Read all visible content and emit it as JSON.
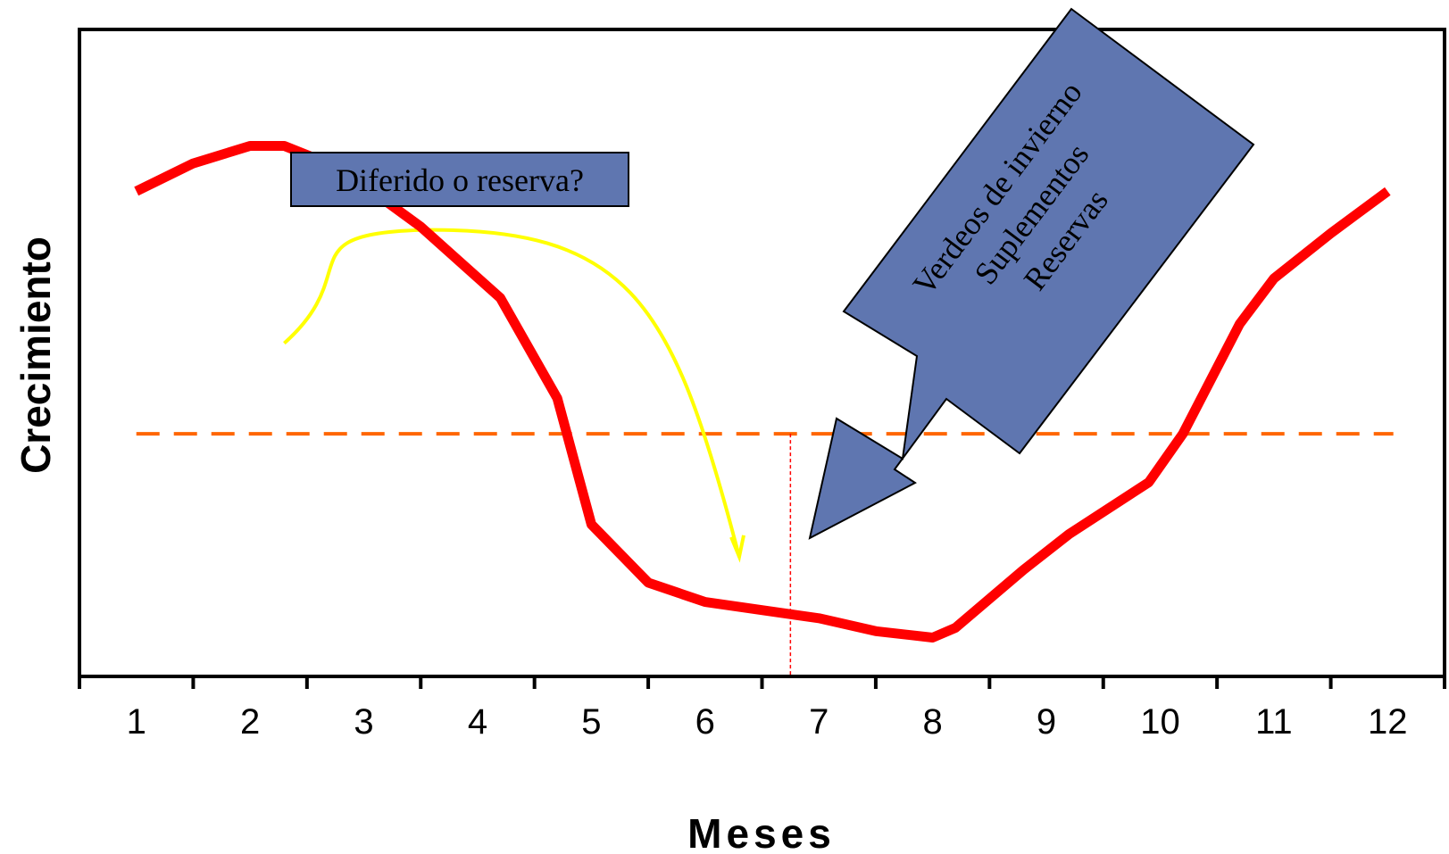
{
  "chart_data": {
    "type": "line",
    "xlabel": "Meses",
    "ylabel": "Crecimiento",
    "categories": [
      "1",
      "2",
      "3",
      "4",
      "5",
      "6",
      "7",
      "8",
      "9",
      "10",
      "11",
      "12"
    ],
    "xlim": [
      0.5,
      12.5
    ],
    "ylim": [
      0,
      100
    ],
    "grid": false,
    "legend": "none",
    "series": [
      {
        "color": "#ff0000",
        "points": [
          [
            1.0,
            75.0
          ],
          [
            1.5,
            79.3
          ],
          [
            2.0,
            82.0
          ],
          [
            2.3,
            82.0
          ],
          [
            2.8,
            78.5
          ],
          [
            3.5,
            69.5
          ],
          [
            4.2,
            58.5
          ],
          [
            4.7,
            43.0
          ],
          [
            5.0,
            23.5
          ],
          [
            5.5,
            14.5
          ],
          [
            6.0,
            11.5
          ],
          [
            7.0,
            9.0
          ],
          [
            7.5,
            7.0
          ],
          [
            8.0,
            6.0
          ],
          [
            8.2,
            7.5
          ],
          [
            8.8,
            16.5
          ],
          [
            9.2,
            22.0
          ],
          [
            9.9,
            30.0
          ],
          [
            10.2,
            37.5
          ],
          [
            10.7,
            54.5
          ],
          [
            11.0,
            61.5
          ],
          [
            11.5,
            68.5
          ],
          [
            12.0,
            75.0
          ]
        ]
      }
    ],
    "threshold": {
      "y": 37.5,
      "color": "#ff6600",
      "style": "dashed"
    },
    "marker_line": {
      "x": 6.75,
      "color": "#ff0000",
      "style": "dotted"
    },
    "deferral_arrow": {
      "color": "#ffff00",
      "start": [
        2.3,
        51.5
      ],
      "peak": [
        3.5,
        69.0
      ],
      "end": [
        6.3,
        18.5
      ]
    },
    "annotations": [
      {
        "text": "Diferido o reserva?",
        "fill": "#5f76b0"
      },
      {
        "lines": [
          "Verdeos de invierno",
          "Suplementos",
          "Reservas"
        ],
        "fill": "#5f76b0"
      }
    ]
  }
}
